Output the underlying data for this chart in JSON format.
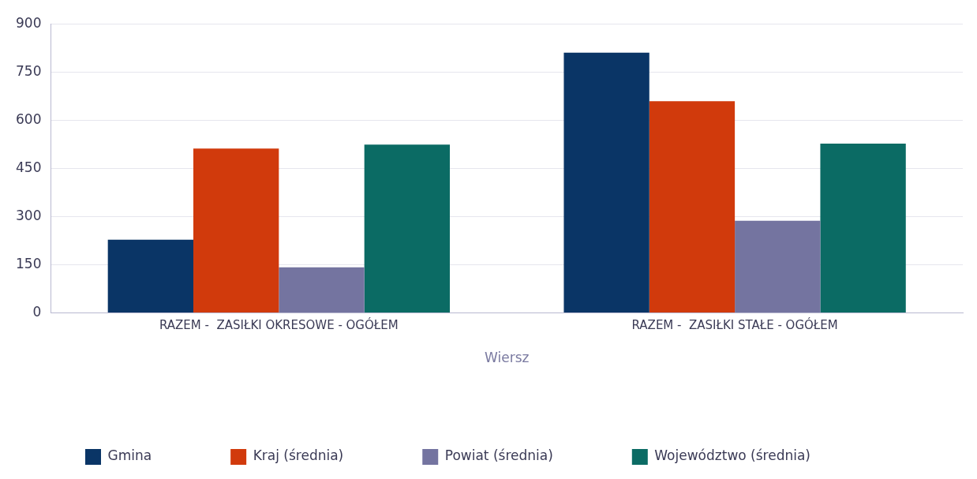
{
  "chart_data": {
    "type": "bar",
    "xlabel": "Wiersz",
    "categories": [
      "RAZEM -  ZASIŁKI OKRESOWE - OGÓŁEM",
      "RAZEM -  ZASIŁKI STAŁE - OGÓŁEM"
    ],
    "series": [
      {
        "name": "Gmina",
        "color": "#0a3566",
        "values": [
          228,
          810
        ]
      },
      {
        "name": "Kraj (średnia)",
        "color": "#d13a0c",
        "values": [
          512,
          659
        ]
      },
      {
        "name": "Powiat (średnia)",
        "color": "#7474a0",
        "values": [
          142,
          287
        ]
      },
      {
        "name": "Województwo (średnia)",
        "color": "#0b6b64",
        "values": [
          524,
          527
        ]
      }
    ],
    "ylim": [
      0,
      900
    ],
    "yticks": [
      0,
      150,
      300,
      450,
      600,
      750,
      900
    ],
    "grid": "y",
    "legend": "bottom"
  }
}
